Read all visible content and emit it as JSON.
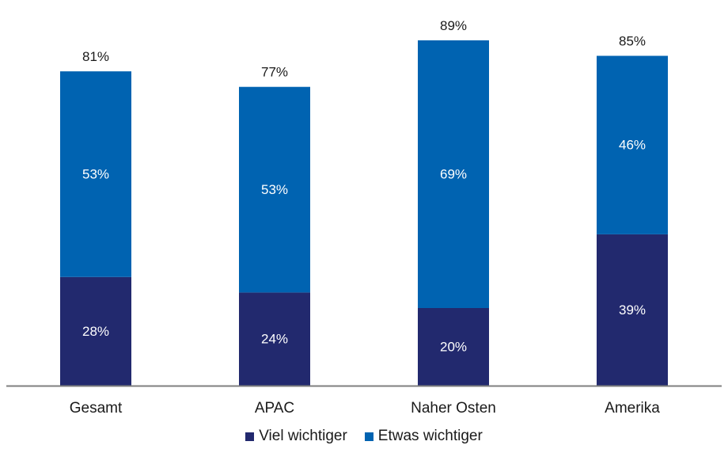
{
  "chart_data": {
    "type": "bar",
    "stacked": true,
    "categories": [
      "Gesamt",
      "APAC",
      "Naher Osten",
      "Amerika"
    ],
    "series": [
      {
        "name": "Viel wichtiger",
        "values": [
          28,
          24,
          20,
          39
        ],
        "labels": [
          "28%",
          "24%",
          "20%",
          "39%"
        ],
        "color": "#22296e"
      },
      {
        "name": "Etwas wichtiger",
        "values": [
          53,
          53,
          69,
          46
        ],
        "labels": [
          "53%",
          "53%",
          "69%",
          "46%"
        ],
        "color": "#0063b1"
      }
    ],
    "totals": [
      81,
      77,
      89,
      85
    ],
    "total_labels": [
      "81%",
      "77%",
      "89%",
      "85%"
    ],
    "legend_position": "bottom",
    "axis_color": "#7f7f7f",
    "ylim": [
      0,
      95
    ]
  }
}
